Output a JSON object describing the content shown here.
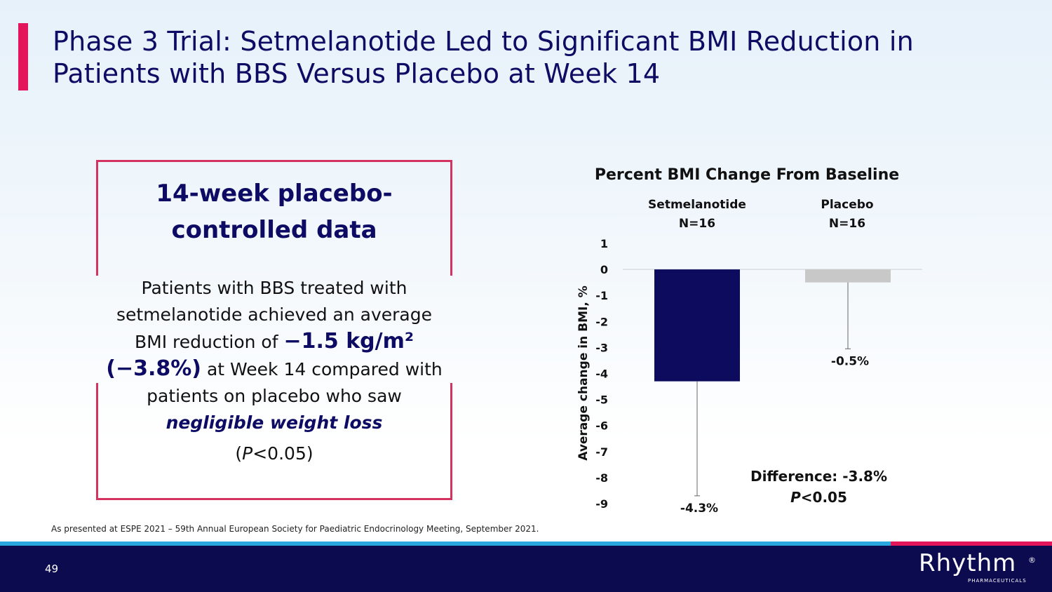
{
  "slide": {
    "title": "Phase 3 Trial: Setmelanotide Led to Significant BMI Reduction in Patients with BBS Versus Placebo at Week 14",
    "page_number": "49",
    "footnote": "As presented at ESPE 2021 – 59th Annual European Society for Paediatric Endocrinology Meeting, September 2021.",
    "logo_text": "Rhythm",
    "logo_reg": "®",
    "logo_sub": "PHARMACEUTICALS"
  },
  "callout": {
    "heading": "14-week placebo-controlled data",
    "text_1": "Patients with BBS treated with setmelanotide achieved an average BMI reduction of ",
    "highlight_1": "−1.5 kg/m²",
    "highlight_2": "(−3.8%)",
    "text_2": " at Week 14 compared with patients on placebo who saw ",
    "emphasis": "negligible weight loss",
    "p_open": "(",
    "p_italic": "P",
    "p_close": "<0.05)"
  },
  "chart_data": {
    "type": "bar",
    "title": "Percent BMI Change From Baseline",
    "ylabel": "Average change in BMI, %",
    "xlabel": "",
    "ylim": [
      -9,
      1
    ],
    "yticks": [
      "1",
      "0",
      "-1",
      "-2",
      "-3",
      "-4",
      "-5",
      "-6",
      "-7",
      "-8",
      "-9"
    ],
    "categories": [
      {
        "name": "Setmelanotide",
        "n": "N=16",
        "value": -4.3,
        "error_low": -8.7,
        "label": "-4.3%",
        "color": "#0d0b5e"
      },
      {
        "name": "Placebo",
        "n": "N=16",
        "value": -0.5,
        "error_low": -3.05,
        "label": "-0.5%",
        "color": "#c8c8c8"
      }
    ],
    "annotation": {
      "line1": "Difference: -3.8%",
      "p_italic": "P",
      "p_rest": "<0.05"
    }
  },
  "colors": {
    "accent": "#e3165b",
    "navy": "#0d0b4f",
    "stripe_blue": "#29a8e0",
    "box_border": "#d4325f"
  }
}
